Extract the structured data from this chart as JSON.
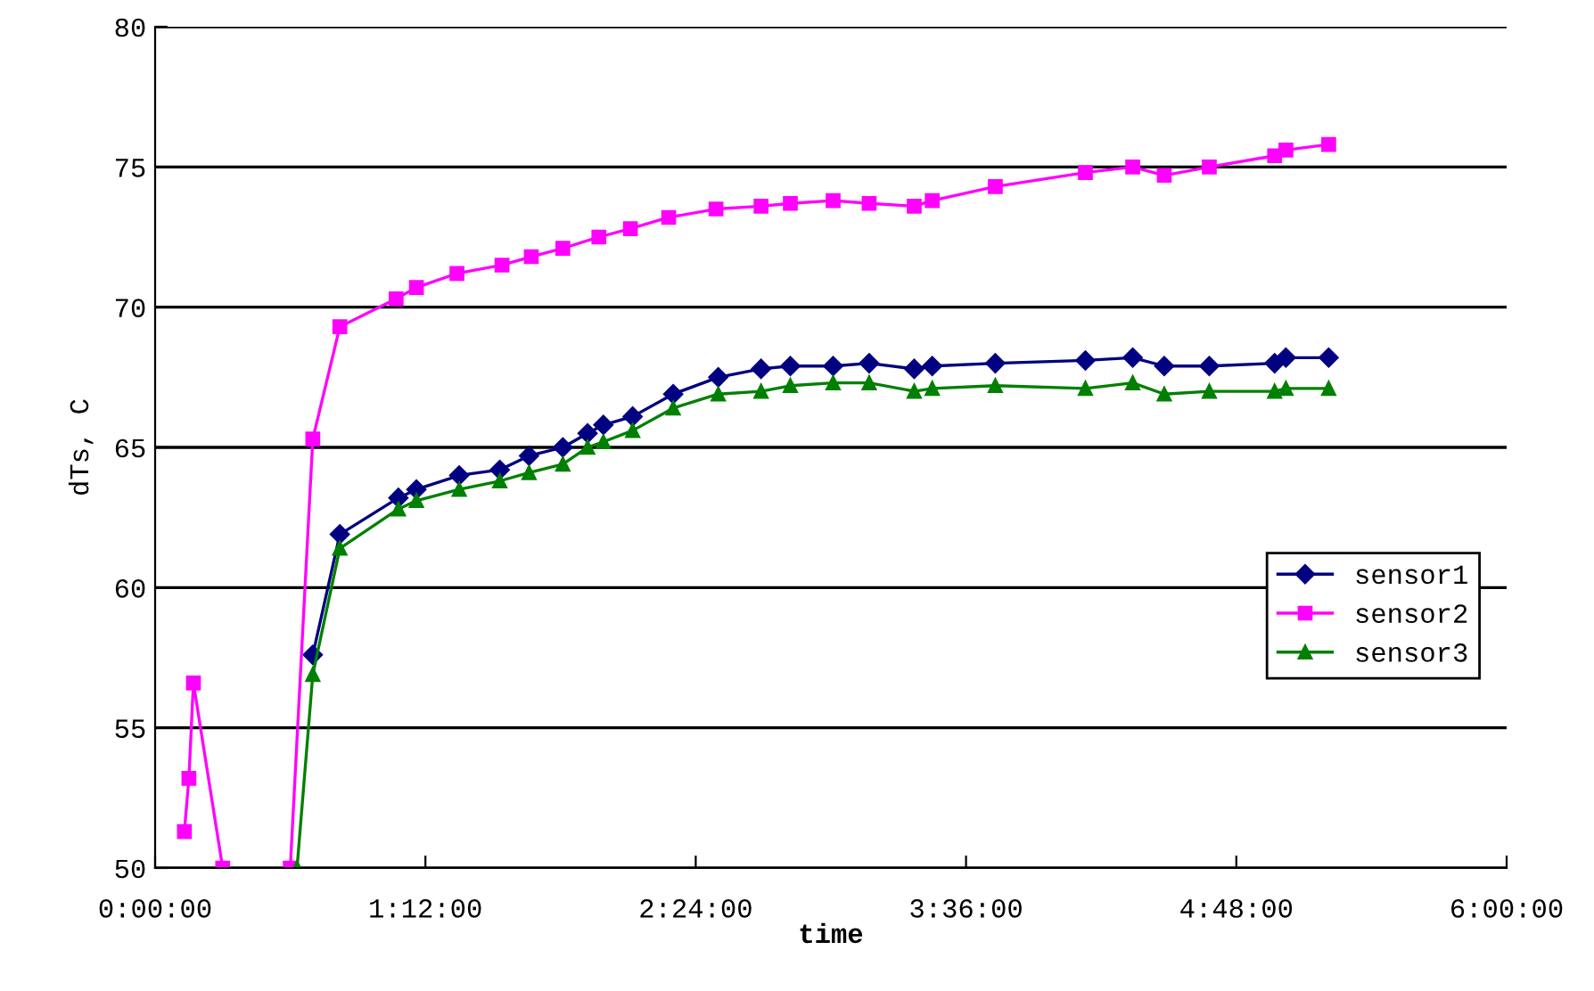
{
  "chart_data": {
    "type": "line",
    "xlabel": "time",
    "ylabel": "dTs, C",
    "xlim": [
      0,
      6
    ],
    "ylim": [
      50,
      80
    ],
    "xticks": [
      {
        "value": 0,
        "label": "0:00:00"
      },
      {
        "value": 1.2,
        "label": "1:12:00"
      },
      {
        "value": 2.4,
        "label": "2:24:00"
      },
      {
        "value": 3.6,
        "label": "3:36:00"
      },
      {
        "value": 4.8,
        "label": "4:48:00"
      },
      {
        "value": 6,
        "label": "6:00:00"
      }
    ],
    "yticks": [
      50,
      55,
      60,
      65,
      70,
      75,
      80
    ],
    "grid": "y",
    "legend": "right",
    "line_style": "solid",
    "series": [
      {
        "name": "sensor1",
        "color": "#000080",
        "marker": "diamond",
        "x": [
          0.7,
          0.82,
          1.08,
          1.16,
          1.35,
          1.53,
          1.66,
          1.81,
          1.92,
          1.99,
          2.12,
          2.3,
          2.5,
          2.69,
          2.82,
          3.01,
          3.17,
          3.37,
          3.45,
          3.73,
          4.13,
          4.34,
          4.48,
          4.68,
          4.97,
          5.02,
          5.21
        ],
        "values": [
          57.6,
          61.9,
          63.2,
          63.5,
          64.0,
          64.2,
          64.7,
          65.0,
          65.5,
          65.8,
          66.1,
          66.9,
          67.5,
          67.8,
          67.9,
          67.9,
          68.0,
          67.8,
          67.9,
          68.0,
          68.1,
          68.2,
          67.9,
          67.9,
          68.0,
          68.2,
          68.2
        ]
      },
      {
        "name": "sensor2",
        "color": "#ff00ff",
        "marker": "square",
        "x": [
          0.13,
          0.15,
          0.17,
          0.3,
          0.45,
          0.6,
          0.7,
          0.82,
          1.07,
          1.16,
          1.34,
          1.54,
          1.67,
          1.81,
          1.97,
          2.11,
          2.28,
          2.49,
          2.69,
          2.82,
          3.01,
          3.17,
          3.37,
          3.45,
          3.73,
          4.13,
          4.34,
          4.48,
          4.68,
          4.97,
          5.02,
          5.21
        ],
        "values": [
          51.3,
          53.2,
          56.6,
          50,
          null,
          50,
          65.3,
          69.3,
          70.3,
          70.7,
          71.2,
          71.5,
          71.8,
          72.1,
          72.5,
          72.8,
          73.2,
          73.5,
          73.6,
          73.7,
          73.8,
          73.7,
          73.6,
          73.8,
          74.3,
          74.8,
          75.0,
          74.7,
          75.0,
          75.4,
          75.6,
          75.8
        ]
      },
      {
        "name": "sensor3",
        "color": "#008000",
        "marker": "triangle",
        "x": [
          0.63,
          0.7,
          0.82,
          1.08,
          1.16,
          1.35,
          1.53,
          1.66,
          1.81,
          1.92,
          1.99,
          2.12,
          2.3,
          2.5,
          2.69,
          2.82,
          3.01,
          3.17,
          3.37,
          3.45,
          3.73,
          4.13,
          4.34,
          4.48,
          4.68,
          4.97,
          5.02,
          5.21
        ],
        "values": [
          50,
          56.9,
          61.4,
          62.8,
          63.1,
          63.5,
          63.8,
          64.1,
          64.4,
          65.0,
          65.2,
          65.6,
          66.4,
          66.9,
          67.0,
          67.2,
          67.3,
          67.3,
          67.0,
          67.1,
          67.2,
          67.1,
          67.3,
          66.9,
          67.0,
          67.0,
          67.1,
          67.1
        ]
      }
    ]
  }
}
